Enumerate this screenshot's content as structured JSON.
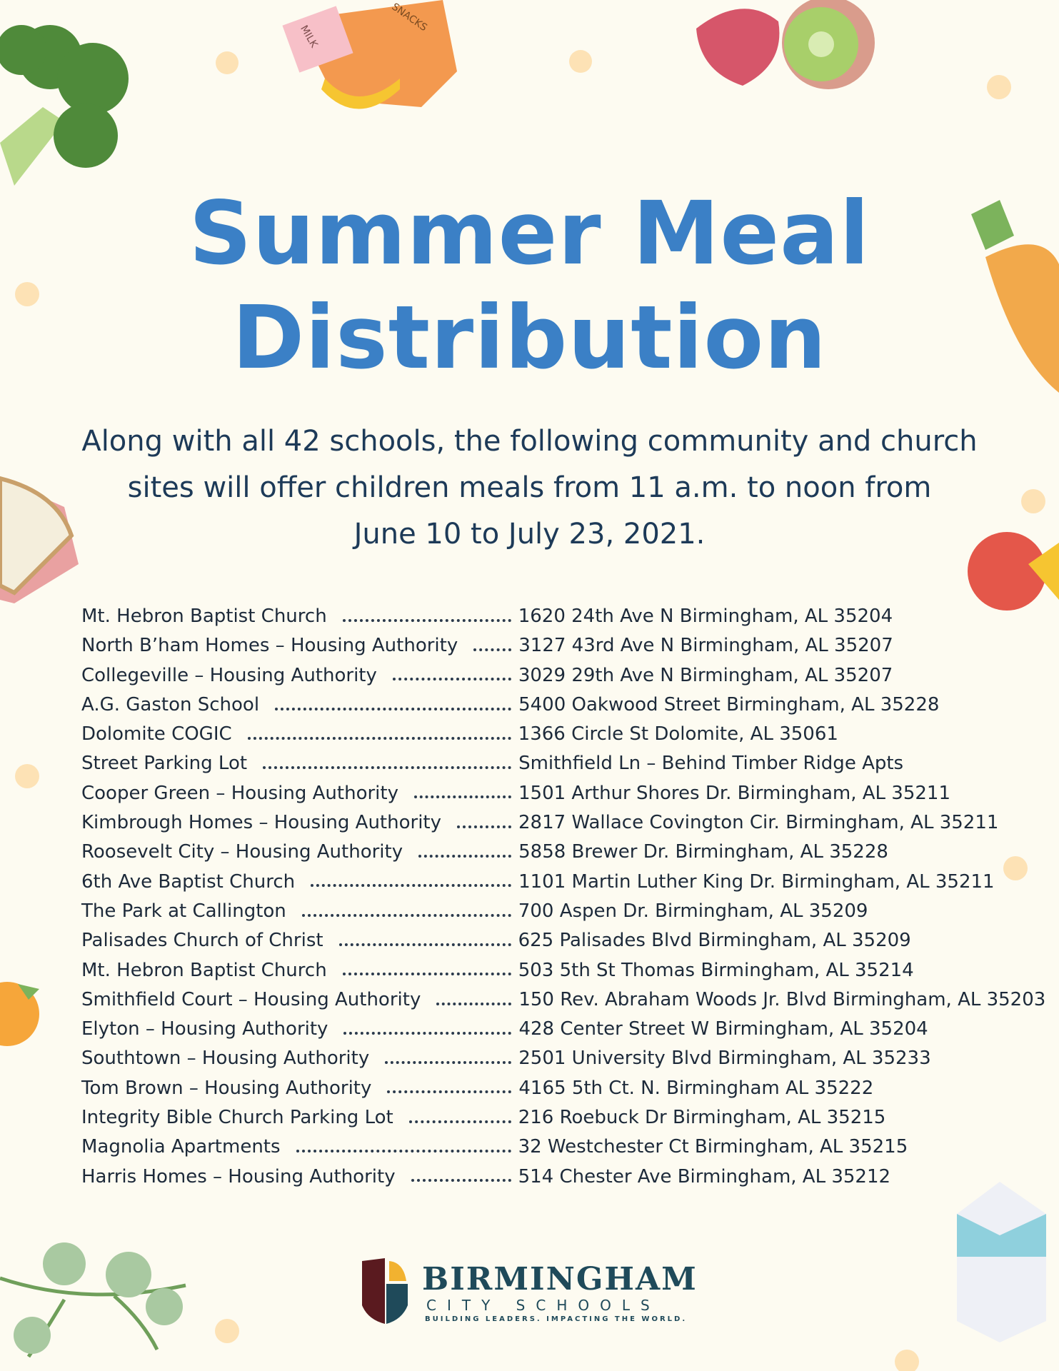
{
  "title": {
    "line1": "Summer Meal",
    "line2": "Distribution"
  },
  "intro": {
    "line1": "Along with all 42 schools, the following community and church",
    "line2": "sites will offer children meals from 11 a.m. to noon from",
    "line3": "June 10 to July 23, 2021."
  },
  "sites": [
    {
      "name": "Mt. Hebron Baptist Church",
      "address": "1620 24th Ave N Birmingham, AL 35204"
    },
    {
      "name": "North B’ham Homes – Housing Authority",
      "address": "3127 43rd Ave N Birmingham, AL 35207"
    },
    {
      "name": "Collegeville – Housing Authority",
      "address": "3029 29th Ave N Birmingham, AL 35207"
    },
    {
      "name": "A.G. Gaston School",
      "address": "5400 Oakwood Street Birmingham, AL 35228"
    },
    {
      "name": "Dolomite COGIC",
      "address": "1366 Circle St Dolomite, AL 35061"
    },
    {
      "name": "Street Parking Lot",
      "address": "Smithfield Ln – Behind Timber Ridge Apts"
    },
    {
      "name": "Cooper Green – Housing Authority",
      "address": "1501 Arthur Shores Dr. Birmingham, AL 35211"
    },
    {
      "name": "Kimbrough Homes – Housing Authority",
      "address": "2817 Wallace Covington Cir. Birmingham, AL 35211"
    },
    {
      "name": "Roosevelt City – Housing Authority",
      "address": "5858 Brewer Dr. Birmingham, AL 35228"
    },
    {
      "name": "6th Ave Baptist Church",
      "address": "1101 Martin Luther King Dr. Birmingham, AL 35211"
    },
    {
      "name": "The Park at Callington",
      "address": "700 Aspen Dr. Birmingham, AL 35209"
    },
    {
      "name": "Palisades Church of Christ",
      "address": "625 Palisades Blvd Birmingham, AL 35209"
    },
    {
      "name": "Mt. Hebron Baptist Church",
      "address": "503 5th St Thomas Birmingham, AL 35214"
    },
    {
      "name": "Smithfield Court – Housing Authority",
      "address": "150 Rev. Abraham Woods Jr. Blvd Birmingham, AL 35203"
    },
    {
      "name": "Elyton – Housing Authority",
      "address": "428 Center Street W Birmingham, AL 35204"
    },
    {
      "name": "Southtown – Housing Authority",
      "address": "2501 University Blvd Birmingham, AL 35233"
    },
    {
      "name": "Tom Brown – Housing Authority",
      "address": "4165 5th Ct. N. Birmingham AL 35222"
    },
    {
      "name": "Integrity Bible Church Parking Lot",
      "address": "216 Roebuck Dr Birmingham, AL 35215"
    },
    {
      "name": "Magnolia Apartments",
      "address": "32 Westchester Ct Birmingham, AL 35215"
    },
    {
      "name": "Harris Homes – Housing Authority",
      "address": "514 Chester Ave Birmingham, AL 35212"
    }
  ],
  "logo": {
    "name": "BIRMINGHAM",
    "subname": "CITY SCHOOLS",
    "tagline": "BUILDING LEADERS. IMPACTING THE WORLD."
  },
  "decorations": {
    "milk_label": "MILK",
    "snacks_label": "SNACKS"
  }
}
